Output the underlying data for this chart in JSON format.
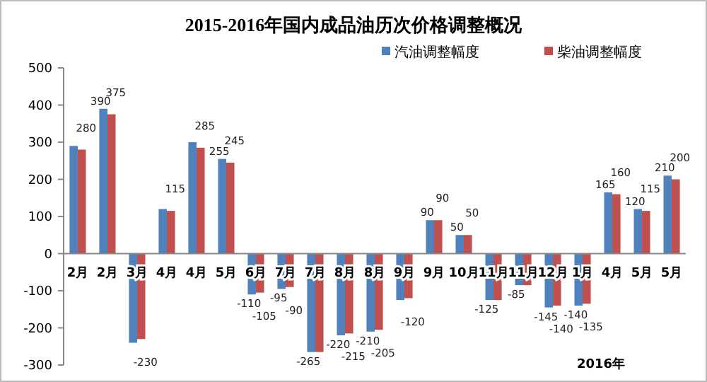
{
  "chart_data": {
    "type": "bar",
    "title": "2015-2016年国内成品油历次价格调整概况",
    "categories": [
      "2月",
      "2月",
      "3月",
      "4月",
      "4月",
      "5月",
      "6月",
      "7月",
      "7月",
      "8月",
      "8月",
      "9月",
      "9月",
      "10月",
      "11月",
      "11月",
      "12月",
      "1月",
      "4月",
      "5月",
      "5月"
    ],
    "series": [
      {
        "name": "汽油调整幅度",
        "color": "#4f81bd",
        "values": [
          290,
          390,
          -240,
          120,
          300,
          255,
          -110,
          -95,
          -265,
          -220,
          -210,
          -125,
          90,
          50,
          -125,
          -85,
          -145,
          -140,
          165,
          120,
          210
        ],
        "value_labels": [
          null,
          "390",
          null,
          null,
          null,
          "255",
          "-110",
          "-95",
          "-265",
          "-220",
          "-210",
          null,
          "90",
          "50",
          "-125",
          "-85",
          "-145",
          "-140",
          "165",
          "120",
          "210"
        ]
      },
      {
        "name": "柴油调整幅度",
        "color": "#c0504d",
        "values": [
          280,
          375,
          -230,
          115,
          285,
          245,
          -105,
          -90,
          -265,
          -215,
          -205,
          -120,
          90,
          50,
          -125,
          -85,
          -140,
          -135,
          160,
          115,
          200
        ],
        "value_labels": [
          "280",
          "375",
          "-230",
          "115",
          "285",
          "245",
          "-105",
          "-90",
          null,
          "-215",
          "-205",
          "-120",
          "90",
          "50",
          null,
          null,
          "-140",
          "-135",
          "160",
          "115",
          "200"
        ]
      }
    ],
    "ylim": [
      -300,
      500
    ],
    "yticks": [
      -300,
      -200,
      -100,
      0,
      100,
      200,
      300,
      400,
      500
    ],
    "grid": false,
    "legend": "top right",
    "annotations": [
      "2016年"
    ]
  }
}
